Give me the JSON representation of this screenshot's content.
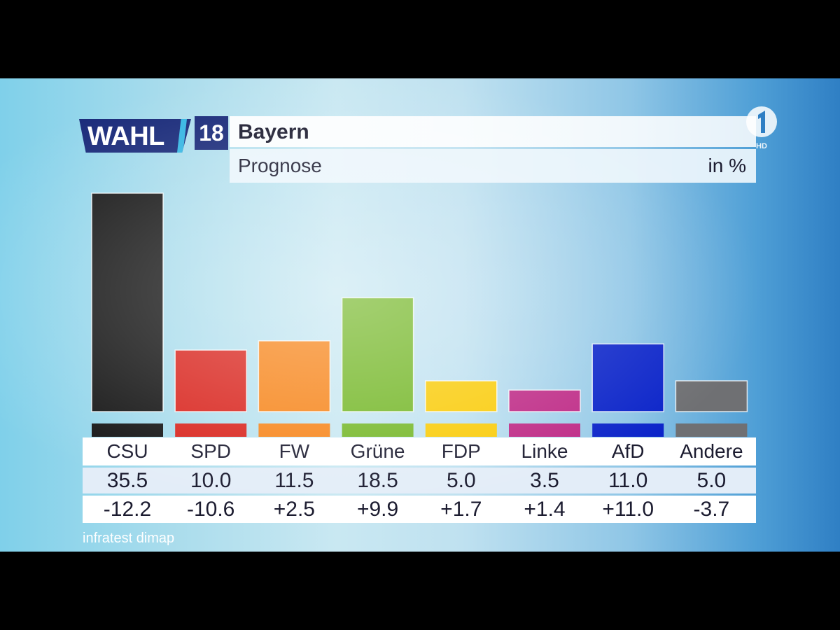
{
  "header": {
    "logo_word": "WAHL",
    "logo_year": "18",
    "title": "Bayern",
    "subtitle": "Prognose",
    "unit": "in %"
  },
  "channel": {
    "badge": "HD",
    "icon": "ard-one-icon"
  },
  "source": "infratest dimap",
  "colors": {
    "CSU": "#151515",
    "SPD": "#d9251e",
    "FW": "#f7861c",
    "Grüne": "#76b82a",
    "FDP": "#f9cc0b",
    "Linke": "#be2a86",
    "AfD": "#0b24c9",
    "Andere": "#6f7073"
  },
  "chart_data": {
    "type": "bar",
    "title": "Bayern",
    "subtitle": "Prognose",
    "unit": "in %",
    "categories": [
      "CSU",
      "SPD",
      "FW",
      "Grüne",
      "FDP",
      "Linke",
      "AfD",
      "Andere"
    ],
    "values": [
      35.5,
      10.0,
      11.5,
      18.5,
      5.0,
      3.5,
      11.0,
      5.0
    ],
    "value_labels": [
      "35.5",
      "10.0",
      "11.5",
      "18.5",
      "5.0",
      "3.5",
      "11.0",
      "5.0"
    ],
    "diff_labels": [
      "-12.2",
      "-10.6",
      "+2.5",
      "+9.9",
      "+1.7",
      "+1.4",
      "+11.0",
      "-3.7"
    ],
    "grid": false,
    "legend": "none"
  }
}
